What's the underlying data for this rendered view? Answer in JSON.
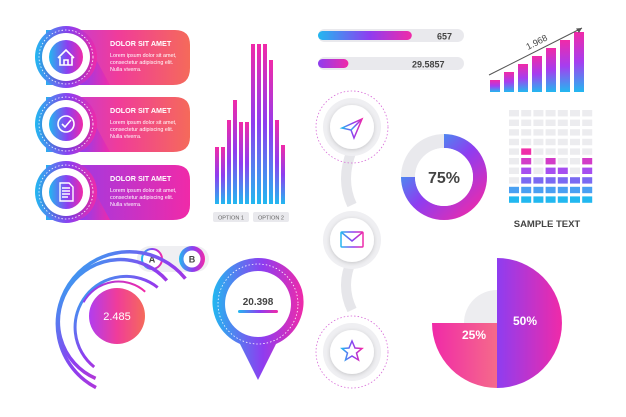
{
  "banners": [
    {
      "title": "DOLOR SIT AMET",
      "body": [
        "Lorem ipsum dolor sit amet,",
        "consectetur adipiscing elit.",
        "Nulla viverra."
      ],
      "icon": "house-icon"
    },
    {
      "title": "DOLOR SIT AMET",
      "body": [
        "Lorem ipsum dolor sit amet,",
        "consectetur adipiscing elit.",
        "Nulla viverra."
      ],
      "icon": "check-circle-icon"
    },
    {
      "title": "DOLOR SIT AMET",
      "body": [
        "Lorem ipsum dolor sit amet,",
        "consectetur adipiscing elit.",
        "Nulla viverra."
      ],
      "icon": "document-icon"
    }
  ],
  "bar_options": [
    "OPTION 1",
    "OPTION 2"
  ],
  "progress": [
    {
      "value": "657",
      "fill": 0.68
    },
    {
      "value": "29.5857",
      "fill": 0.22
    }
  ],
  "growth_value": "1.968",
  "steps_icons": [
    "paper-plane-icon",
    "envelope-icon",
    "star-icon"
  ],
  "donut": {
    "label": "75%",
    "fraction": 0.75
  },
  "sample_text": "SAMPLE TEXT",
  "toggle": {
    "a": "A",
    "b": "B"
  },
  "rings": {
    "value": "2.485"
  },
  "pin": {
    "value": "20.398"
  },
  "half_pie": {
    "left": "25%",
    "right": "50%"
  },
  "colors": {
    "blue": "#22b8f0",
    "purple": "#8e3df0",
    "pink": "#f02aa8",
    "coral": "#f15a6e",
    "grey": "#e9e9ed"
  }
}
